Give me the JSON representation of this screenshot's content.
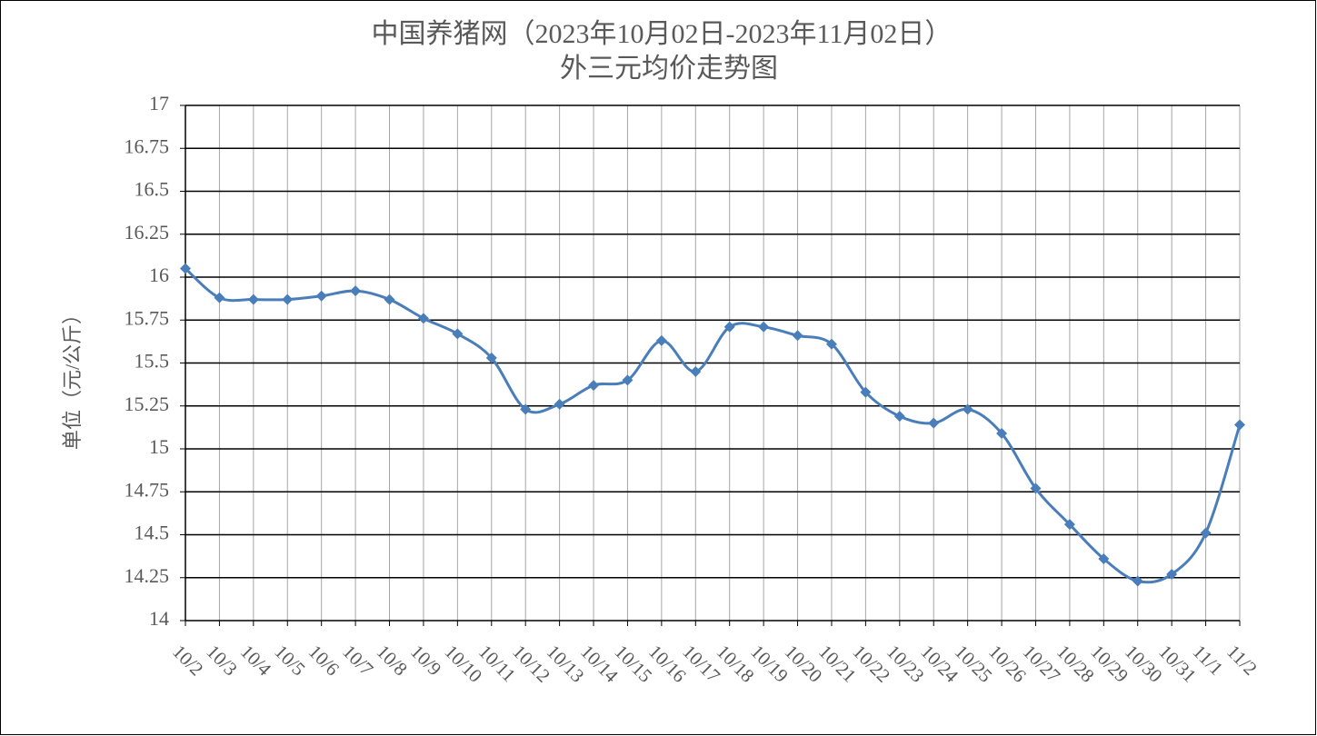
{
  "chart_data": {
    "type": "line",
    "title": [
      "中国养猪网（2023年10月02日-2023年11月02日）",
      "外三元均价走势图"
    ],
    "y_label": "单位（元/公斤）",
    "categories": [
      "10/2",
      "10/3",
      "10/4",
      "10/5",
      "10/6",
      "10/7",
      "10/8",
      "10/9",
      "10/10",
      "10/11",
      "10/12",
      "10/13",
      "10/14",
      "10/15",
      "10/16",
      "10/17",
      "10/18",
      "10/19",
      "10/20",
      "10/21",
      "10/22",
      "10/23",
      "10/24",
      "10/25",
      "10/26",
      "10/27",
      "10/28",
      "10/29",
      "10/30",
      "10/31",
      "11/1",
      "11/2"
    ],
    "values": [
      16.05,
      15.88,
      15.87,
      15.87,
      15.89,
      15.92,
      15.87,
      15.76,
      15.67,
      15.53,
      15.23,
      15.26,
      15.37,
      15.4,
      15.63,
      15.45,
      15.71,
      15.71,
      15.66,
      15.61,
      15.33,
      15.19,
      15.15,
      15.23,
      15.09,
      14.77,
      14.56,
      14.36,
      14.23,
      14.27,
      14.51,
      15.14
    ],
    "color": "#4a7ebb",
    "ylim": [
      14,
      17
    ],
    "yticks": [
      14,
      14.25,
      14.5,
      14.75,
      15,
      15.25,
      15.5,
      15.75,
      16,
      16.25,
      16.5,
      16.75,
      17
    ],
    "grid": true,
    "smooth": true
  }
}
